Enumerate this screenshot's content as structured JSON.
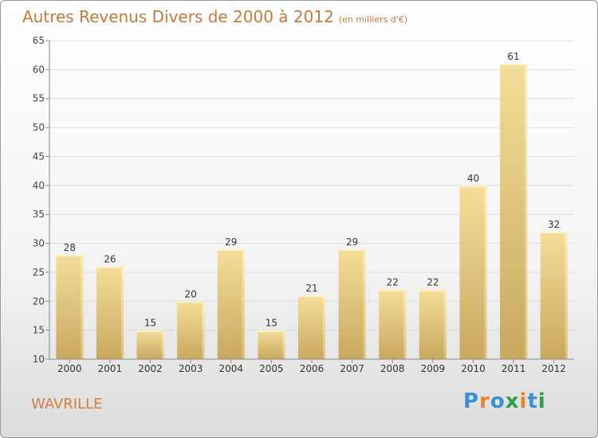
{
  "title": "Autres Revenus Divers de 2000 à 2012",
  "unit": "(en milliers d'€)",
  "city": "WAVRILLE",
  "logo": {
    "letters": [
      "P",
      "r",
      "o",
      "x",
      "i",
      "t",
      "i"
    ],
    "colors": [
      "#3b8fd8",
      "#e8852a",
      "#3b8fd8",
      "#2aa14a",
      "#e8852a",
      "#3b8fd8",
      "#2aa14a"
    ]
  },
  "chart_data": {
    "type": "bar",
    "categories": [
      "2000",
      "2001",
      "2002",
      "2003",
      "2004",
      "2005",
      "2006",
      "2007",
      "2008",
      "2009",
      "2010",
      "2011",
      "2012"
    ],
    "values": [
      28,
      26,
      15,
      20,
      29,
      15,
      21,
      29,
      22,
      22,
      40,
      61,
      32
    ],
    "ylim": [
      10,
      65
    ],
    "yticks": [
      10,
      15,
      20,
      25,
      30,
      35,
      40,
      45,
      50,
      55,
      60,
      65
    ],
    "grid": true,
    "bar_color": "#e8cf8a"
  }
}
